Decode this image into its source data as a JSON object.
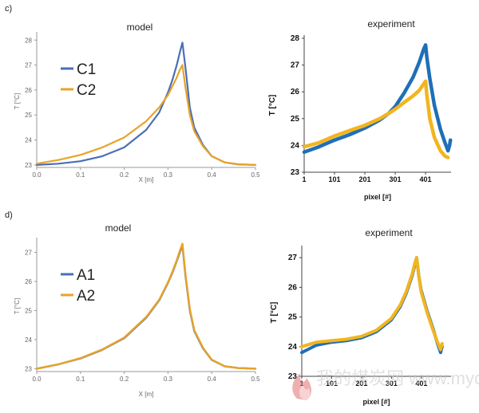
{
  "panel_labels": {
    "c": "c)",
    "d": "d)"
  },
  "watermark": "我的煤炭网 www.mycoal.cn",
  "colors": {
    "blue": "#4a6fb5",
    "orange": "#e8a328",
    "exp_blue": "#1f6fb8",
    "exp_yellow": "#f2b51f",
    "axis": "#9a9a9a"
  },
  "chart_data": [
    {
      "id": "c-model",
      "type": "line",
      "title": "model",
      "xlabel": "X [m]",
      "ylabel": "T [°C]",
      "xlim": [
        0,
        0.5
      ],
      "ylim": [
        22.9,
        28.2
      ],
      "xticks": [
        "0.0",
        "0.1",
        "0.2",
        "0.3",
        "0.4",
        "0.5"
      ],
      "yticks": [
        "23",
        "24",
        "25",
        "26",
        "27",
        "28"
      ],
      "legend_position": "top-left",
      "series": [
        {
          "name": "C1",
          "color": "#4a6fb5",
          "x": [
            0,
            0.05,
            0.1,
            0.15,
            0.2,
            0.25,
            0.28,
            0.3,
            0.31,
            0.32,
            0.327,
            0.333,
            0.34,
            0.35,
            0.36,
            0.38,
            0.4,
            0.43,
            0.46,
            0.5
          ],
          "y": [
            23.0,
            23.05,
            23.15,
            23.35,
            23.7,
            24.4,
            25.1,
            25.9,
            26.4,
            27.0,
            27.5,
            27.9,
            26.9,
            25.3,
            24.5,
            23.8,
            23.35,
            23.1,
            23.02,
            23.0
          ]
        },
        {
          "name": "C2",
          "color": "#e8a328",
          "x": [
            0,
            0.05,
            0.1,
            0.15,
            0.2,
            0.25,
            0.28,
            0.3,
            0.31,
            0.32,
            0.327,
            0.333,
            0.34,
            0.35,
            0.36,
            0.38,
            0.4,
            0.43,
            0.46,
            0.5
          ],
          "y": [
            23.05,
            23.2,
            23.4,
            23.7,
            24.1,
            24.75,
            25.3,
            25.8,
            26.15,
            26.5,
            26.8,
            27.0,
            26.1,
            25.0,
            24.35,
            23.75,
            23.35,
            23.1,
            23.03,
            23.0
          ]
        }
      ]
    },
    {
      "id": "c-experiment",
      "type": "line",
      "title": "experiment",
      "xlabel": "pixel [#]",
      "ylabel": "T [°C]",
      "xlim": [
        1,
        485
      ],
      "ylim": [
        23,
        28
      ],
      "xticks": [
        "1",
        "101",
        "201",
        "301",
        "401"
      ],
      "yticks": [
        "23",
        "24",
        "25",
        "26",
        "27",
        "28"
      ],
      "series": [
        {
          "name": "",
          "color": "#1f6fb8",
          "x": [
            1,
            50,
            101,
            150,
            201,
            250,
            280,
            301,
            330,
            360,
            380,
            395,
            401,
            405,
            415,
            430,
            450,
            465,
            475,
            480,
            483
          ],
          "y": [
            23.75,
            23.95,
            24.2,
            24.4,
            24.65,
            24.95,
            25.2,
            25.45,
            25.95,
            26.55,
            27.1,
            27.6,
            27.75,
            27.3,
            26.5,
            25.5,
            24.6,
            24.1,
            23.8,
            24.0,
            24.2
          ]
        },
        {
          "name": "",
          "color": "#f2b51f",
          "x": [
            1,
            50,
            101,
            150,
            201,
            250,
            280,
            301,
            330,
            360,
            380,
            395,
            401,
            405,
            415,
            430,
            450,
            465,
            475
          ],
          "y": [
            23.95,
            24.1,
            24.35,
            24.55,
            24.75,
            25.0,
            25.2,
            25.35,
            25.6,
            25.85,
            26.05,
            26.3,
            26.4,
            25.9,
            25.0,
            24.3,
            23.8,
            23.6,
            23.55
          ]
        }
      ]
    },
    {
      "id": "d-model",
      "type": "line",
      "title": "model",
      "xlabel": "X [m]",
      "ylabel": "T [°C]",
      "xlim": [
        0,
        0.5
      ],
      "ylim": [
        22.9,
        27.4
      ],
      "xticks": [
        "0.0",
        "0.1",
        "0.2",
        "0.3",
        "0.4",
        "0.5"
      ],
      "yticks": [
        "23",
        "24",
        "25",
        "26",
        "27"
      ],
      "legend_position": "top-left",
      "series": [
        {
          "name": "A1",
          "color": "#4a6fb5",
          "x": [
            0,
            0.05,
            0.1,
            0.15,
            0.2,
            0.25,
            0.28,
            0.3,
            0.31,
            0.32,
            0.327,
            0.333,
            0.34,
            0.35,
            0.36,
            0.38,
            0.4,
            0.43,
            0.46,
            0.5
          ],
          "y": [
            23.0,
            23.15,
            23.35,
            23.65,
            24.05,
            24.75,
            25.35,
            25.95,
            26.3,
            26.7,
            27.0,
            27.25,
            26.2,
            25.0,
            24.3,
            23.7,
            23.3,
            23.08,
            23.02,
            23.0
          ]
        },
        {
          "name": "A2",
          "color": "#e8a328",
          "x": [
            0,
            0.05,
            0.1,
            0.15,
            0.2,
            0.25,
            0.28,
            0.3,
            0.31,
            0.32,
            0.327,
            0.333,
            0.34,
            0.35,
            0.36,
            0.38,
            0.4,
            0.43,
            0.46,
            0.5
          ],
          "y": [
            23.0,
            23.15,
            23.36,
            23.66,
            24.07,
            24.77,
            25.37,
            25.97,
            26.33,
            26.73,
            27.05,
            27.3,
            26.25,
            25.05,
            24.33,
            23.72,
            23.31,
            23.08,
            23.02,
            23.0
          ]
        }
      ]
    },
    {
      "id": "d-experiment",
      "type": "line",
      "title": "experiment",
      "xlabel": "pixel [#]",
      "ylabel": "T [°C]",
      "xlim": [
        1,
        500
      ],
      "ylim": [
        23,
        27.3
      ],
      "xticks": [
        "1",
        "101",
        "201",
        "301",
        "401"
      ],
      "yticks": [
        "23",
        "24",
        "25",
        "26",
        "27"
      ],
      "series": [
        {
          "name": "",
          "color": "#1f6fb8",
          "x": [
            1,
            50,
            101,
            150,
            201,
            250,
            300,
            330,
            350,
            370,
            380,
            385,
            392,
            400,
            420,
            440,
            455,
            465,
            470
          ],
          "y": [
            23.8,
            24.05,
            24.15,
            24.2,
            24.3,
            24.5,
            24.9,
            25.35,
            25.8,
            26.4,
            26.8,
            27.0,
            26.4,
            25.9,
            25.2,
            24.6,
            24.1,
            23.8,
            24.0
          ]
        },
        {
          "name": "",
          "color": "#f2b51f",
          "x": [
            1,
            50,
            101,
            150,
            201,
            250,
            300,
            330,
            350,
            370,
            380,
            385,
            392,
            400,
            420,
            440,
            455,
            465,
            470
          ],
          "y": [
            24.0,
            24.15,
            24.2,
            24.25,
            24.35,
            24.55,
            24.95,
            25.4,
            25.85,
            26.45,
            26.85,
            27.0,
            26.4,
            25.85,
            25.15,
            24.55,
            24.15,
            23.9,
            24.1
          ]
        }
      ]
    }
  ]
}
